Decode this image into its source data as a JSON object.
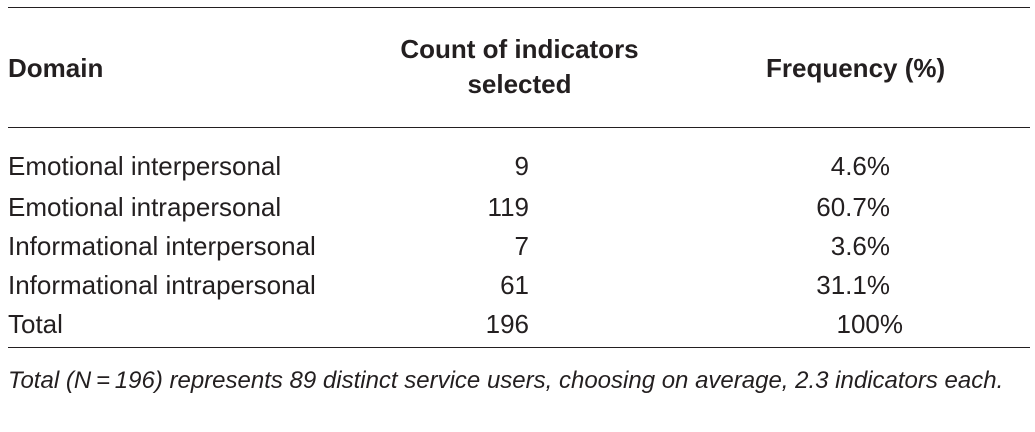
{
  "table": {
    "headers": {
      "domain": "Domain",
      "count_line1": "Count of indicators",
      "count_line2": "selected",
      "frequency": "Frequency (%)"
    },
    "rows": [
      {
        "domain": "Emotional interpersonal",
        "count": "9",
        "frequency": "4.6%"
      },
      {
        "domain": "Emotional intrapersonal",
        "count": "119",
        "frequency": "60.7%"
      },
      {
        "domain": "Informational interpersonal",
        "count": "7",
        "frequency": "3.6%"
      },
      {
        "domain": "Informational intrapersonal",
        "count": "61",
        "frequency": "31.1%"
      },
      {
        "domain": "Total",
        "count": "196",
        "frequency": "100%"
      }
    ],
    "footnote": "Total (N = 196) represents 89 distinct service users, choosing on average, 2.3 indicators each."
  }
}
